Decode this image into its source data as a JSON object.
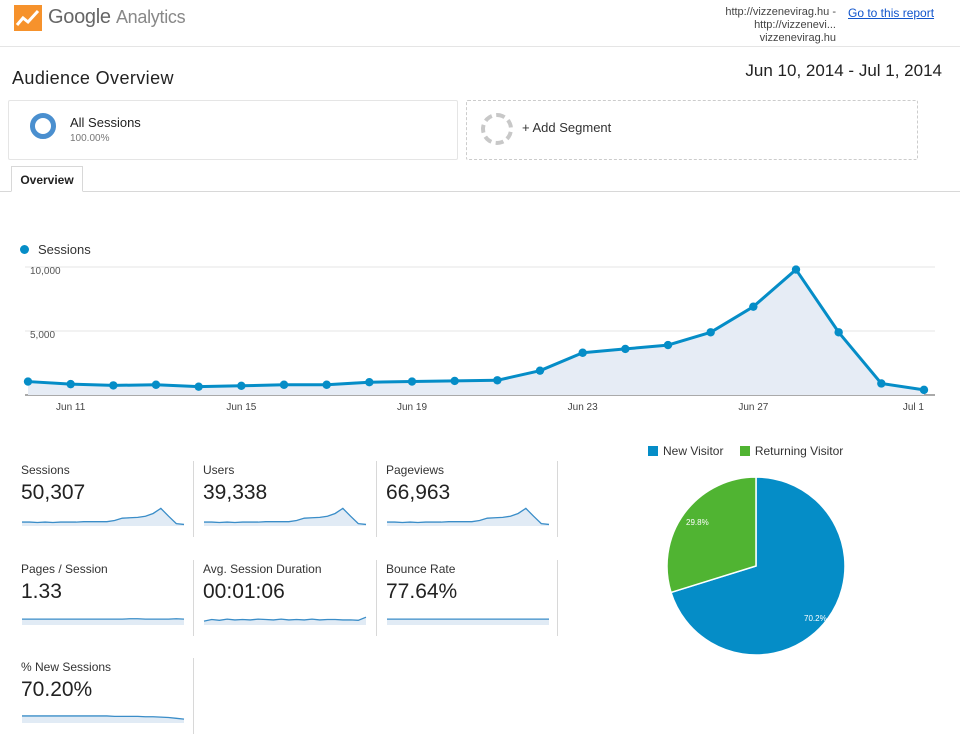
{
  "header": {
    "logo_google": "Google",
    "logo_analytics": "Analytics",
    "property_line1": "http://vizzenevirag.hu - http://vizzenevi...",
    "property_line2": "vizzenevirag.hu",
    "goto_report": "Go to this report"
  },
  "page": {
    "title": "Audience Overview",
    "date_range": "Jun 10, 2014 - Jul 1, 2014"
  },
  "segments": {
    "all": {
      "label": "All Sessions",
      "percent": "100.00%"
    },
    "add_label": "+ Add Segment"
  },
  "tabs": [
    {
      "label": "Overview"
    }
  ],
  "colors": {
    "sessions_line": "#058dc7",
    "sessions_fill": "#e6ecf5",
    "new_visitor": "#058dc7",
    "returning_visitor": "#50b432"
  },
  "chart_data": [
    {
      "type": "area",
      "series": [
        {
          "name": "Sessions",
          "values": [
            1050,
            850,
            750,
            800,
            650,
            720,
            800,
            800,
            1000,
            1050,
            1100,
            1150,
            1900,
            3300,
            3600,
            3900,
            4900,
            6900,
            9800,
            4900,
            900,
            400
          ]
        }
      ],
      "x": [
        "Jun 10",
        "Jun 11",
        "Jun 12",
        "Jun 13",
        "Jun 14",
        "Jun 15",
        "Jun 16",
        "Jun 17",
        "Jun 18",
        "Jun 19",
        "Jun 20",
        "Jun 21",
        "Jun 22",
        "Jun 23",
        "Jun 24",
        "Jun 25",
        "Jun 26",
        "Jun 27",
        "Jun 28",
        "Jun 29",
        "Jun 30",
        "Jul 1"
      ],
      "x_tick_labels": [
        {
          "label": "Jun 11",
          "index": 1
        },
        {
          "label": "Jun 15",
          "index": 5
        },
        {
          "label": "Jun 19",
          "index": 9
        },
        {
          "label": "Jun 23",
          "index": 13
        },
        {
          "label": "Jun 27",
          "index": 17
        },
        {
          "label": "Jul 1",
          "index": 21
        }
      ],
      "y_ticks": [
        "10,000",
        "5,000"
      ],
      "ylim": [
        0,
        10000
      ],
      "legend": "top-left",
      "grid": true
    },
    {
      "type": "pie",
      "categories": [
        "New Visitor",
        "Returning Visitor"
      ],
      "values": [
        70.2,
        29.8
      ],
      "slice_labels": [
        "70.2%",
        "29.8%"
      ],
      "legend": "top"
    }
  ],
  "metrics": [
    {
      "label": "Sessions",
      "value": "50,307",
      "spark": [
        10,
        10,
        9,
        10,
        9,
        10,
        10,
        10,
        11,
        11,
        11,
        11,
        14,
        20,
        21,
        22,
        25,
        32,
        45,
        25,
        6,
        4
      ]
    },
    {
      "label": "Users",
      "value": "39,338",
      "spark": [
        10,
        10,
        9,
        10,
        9,
        10,
        10,
        10,
        11,
        11,
        11,
        11,
        14,
        20,
        21,
        22,
        25,
        32,
        45,
        25,
        6,
        4
      ]
    },
    {
      "label": "Pageviews",
      "value": "66,963",
      "spark": [
        10,
        10,
        9,
        10,
        9,
        10,
        10,
        10,
        11,
        11,
        11,
        11,
        14,
        20,
        21,
        22,
        25,
        32,
        45,
        25,
        6,
        4
      ]
    },
    {
      "label": "Pages / Session",
      "value": "1.33",
      "spark": [
        15,
        15,
        15,
        15,
        15,
        15,
        15,
        15,
        15,
        15,
        15,
        15,
        15,
        15,
        16,
        16,
        15,
        15,
        15,
        15,
        16,
        15
      ]
    },
    {
      "label": "Avg. Session Duration",
      "value": "00:01:06",
      "spark": [
        10,
        14,
        12,
        15,
        13,
        14,
        13,
        15,
        14,
        13,
        15,
        13,
        14,
        13,
        15,
        13,
        14,
        14,
        13,
        13,
        12,
        20
      ]
    },
    {
      "label": "Bounce Rate",
      "value": "77.64%",
      "spark": [
        15,
        15,
        15,
        15,
        15,
        15,
        15,
        15,
        15,
        15,
        15,
        15,
        15,
        15,
        15,
        15,
        15,
        15,
        15,
        15,
        15,
        15
      ]
    },
    {
      "label": "% New Sessions",
      "value": "70.20%",
      "spark": [
        18,
        18,
        18,
        18,
        18,
        18,
        18,
        18,
        18,
        18,
        18,
        18,
        17,
        17,
        17,
        17,
        16,
        16,
        15,
        14,
        12,
        10
      ]
    }
  ]
}
